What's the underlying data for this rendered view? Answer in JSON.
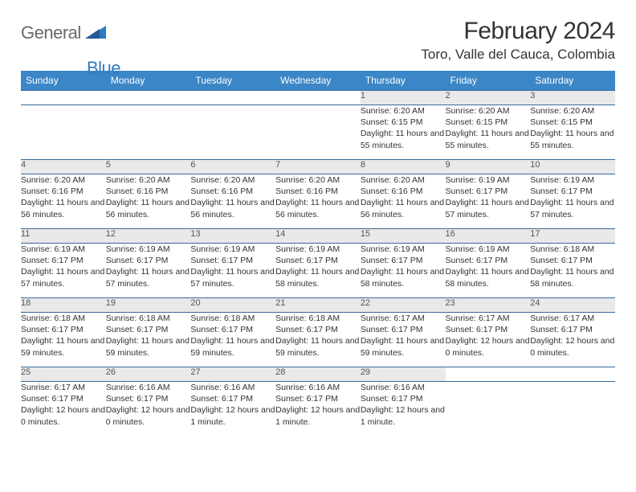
{
  "logo": {
    "part1": "General",
    "part2": "Blue"
  },
  "title": "February 2024",
  "location": "Toro, Valle del Cauca, Colombia",
  "colors": {
    "header_bg": "#3b86c6",
    "header_text": "#ffffff",
    "daynum_bg": "#e9e9e9",
    "border": "#3b6a99",
    "logo_grey": "#6a6a6a",
    "logo_blue": "#2f7bbf"
  },
  "daysOfWeek": [
    "Sunday",
    "Monday",
    "Tuesday",
    "Wednesday",
    "Thursday",
    "Friday",
    "Saturday"
  ],
  "weeks": [
    [
      null,
      null,
      null,
      null,
      {
        "n": "1",
        "sr": "Sunrise: 6:20 AM",
        "ss": "Sunset: 6:15 PM",
        "dl": "Daylight: 11 hours and 55 minutes."
      },
      {
        "n": "2",
        "sr": "Sunrise: 6:20 AM",
        "ss": "Sunset: 6:15 PM",
        "dl": "Daylight: 11 hours and 55 minutes."
      },
      {
        "n": "3",
        "sr": "Sunrise: 6:20 AM",
        "ss": "Sunset: 6:15 PM",
        "dl": "Daylight: 11 hours and 55 minutes."
      }
    ],
    [
      {
        "n": "4",
        "sr": "Sunrise: 6:20 AM",
        "ss": "Sunset: 6:16 PM",
        "dl": "Daylight: 11 hours and 56 minutes."
      },
      {
        "n": "5",
        "sr": "Sunrise: 6:20 AM",
        "ss": "Sunset: 6:16 PM",
        "dl": "Daylight: 11 hours and 56 minutes."
      },
      {
        "n": "6",
        "sr": "Sunrise: 6:20 AM",
        "ss": "Sunset: 6:16 PM",
        "dl": "Daylight: 11 hours and 56 minutes."
      },
      {
        "n": "7",
        "sr": "Sunrise: 6:20 AM",
        "ss": "Sunset: 6:16 PM",
        "dl": "Daylight: 11 hours and 56 minutes."
      },
      {
        "n": "8",
        "sr": "Sunrise: 6:20 AM",
        "ss": "Sunset: 6:16 PM",
        "dl": "Daylight: 11 hours and 56 minutes."
      },
      {
        "n": "9",
        "sr": "Sunrise: 6:19 AM",
        "ss": "Sunset: 6:17 PM",
        "dl": "Daylight: 11 hours and 57 minutes."
      },
      {
        "n": "10",
        "sr": "Sunrise: 6:19 AM",
        "ss": "Sunset: 6:17 PM",
        "dl": "Daylight: 11 hours and 57 minutes."
      }
    ],
    [
      {
        "n": "11",
        "sr": "Sunrise: 6:19 AM",
        "ss": "Sunset: 6:17 PM",
        "dl": "Daylight: 11 hours and 57 minutes."
      },
      {
        "n": "12",
        "sr": "Sunrise: 6:19 AM",
        "ss": "Sunset: 6:17 PM",
        "dl": "Daylight: 11 hours and 57 minutes."
      },
      {
        "n": "13",
        "sr": "Sunrise: 6:19 AM",
        "ss": "Sunset: 6:17 PM",
        "dl": "Daylight: 11 hours and 57 minutes."
      },
      {
        "n": "14",
        "sr": "Sunrise: 6:19 AM",
        "ss": "Sunset: 6:17 PM",
        "dl": "Daylight: 11 hours and 58 minutes."
      },
      {
        "n": "15",
        "sr": "Sunrise: 6:19 AM",
        "ss": "Sunset: 6:17 PM",
        "dl": "Daylight: 11 hours and 58 minutes."
      },
      {
        "n": "16",
        "sr": "Sunrise: 6:19 AM",
        "ss": "Sunset: 6:17 PM",
        "dl": "Daylight: 11 hours and 58 minutes."
      },
      {
        "n": "17",
        "sr": "Sunrise: 6:18 AM",
        "ss": "Sunset: 6:17 PM",
        "dl": "Daylight: 11 hours and 58 minutes."
      }
    ],
    [
      {
        "n": "18",
        "sr": "Sunrise: 6:18 AM",
        "ss": "Sunset: 6:17 PM",
        "dl": "Daylight: 11 hours and 59 minutes."
      },
      {
        "n": "19",
        "sr": "Sunrise: 6:18 AM",
        "ss": "Sunset: 6:17 PM",
        "dl": "Daylight: 11 hours and 59 minutes."
      },
      {
        "n": "20",
        "sr": "Sunrise: 6:18 AM",
        "ss": "Sunset: 6:17 PM",
        "dl": "Daylight: 11 hours and 59 minutes."
      },
      {
        "n": "21",
        "sr": "Sunrise: 6:18 AM",
        "ss": "Sunset: 6:17 PM",
        "dl": "Daylight: 11 hours and 59 minutes."
      },
      {
        "n": "22",
        "sr": "Sunrise: 6:17 AM",
        "ss": "Sunset: 6:17 PM",
        "dl": "Daylight: 11 hours and 59 minutes."
      },
      {
        "n": "23",
        "sr": "Sunrise: 6:17 AM",
        "ss": "Sunset: 6:17 PM",
        "dl": "Daylight: 12 hours and 0 minutes."
      },
      {
        "n": "24",
        "sr": "Sunrise: 6:17 AM",
        "ss": "Sunset: 6:17 PM",
        "dl": "Daylight: 12 hours and 0 minutes."
      }
    ],
    [
      {
        "n": "25",
        "sr": "Sunrise: 6:17 AM",
        "ss": "Sunset: 6:17 PM",
        "dl": "Daylight: 12 hours and 0 minutes."
      },
      {
        "n": "26",
        "sr": "Sunrise: 6:16 AM",
        "ss": "Sunset: 6:17 PM",
        "dl": "Daylight: 12 hours and 0 minutes."
      },
      {
        "n": "27",
        "sr": "Sunrise: 6:16 AM",
        "ss": "Sunset: 6:17 PM",
        "dl": "Daylight: 12 hours and 1 minute."
      },
      {
        "n": "28",
        "sr": "Sunrise: 6:16 AM",
        "ss": "Sunset: 6:17 PM",
        "dl": "Daylight: 12 hours and 1 minute."
      },
      {
        "n": "29",
        "sr": "Sunrise: 6:16 AM",
        "ss": "Sunset: 6:17 PM",
        "dl": "Daylight: 12 hours and 1 minute."
      },
      null,
      null
    ]
  ]
}
